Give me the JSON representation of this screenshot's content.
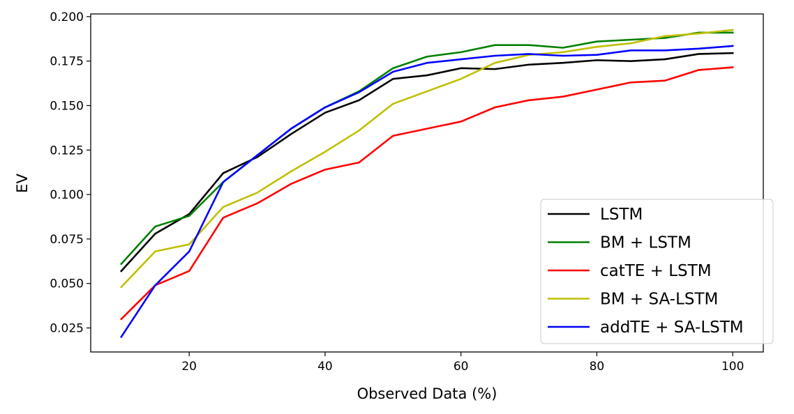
{
  "chart_data": {
    "type": "line",
    "title": "",
    "xlabel": "Observed Data (%)",
    "ylabel": "EV",
    "xlim": [
      5.5,
      104.5
    ],
    "ylim": [
      0.0115,
      0.2015
    ],
    "xticks": [
      20,
      40,
      60,
      80,
      100
    ],
    "yticks": [
      0.025,
      0.05,
      0.075,
      0.1,
      0.125,
      0.15,
      0.175,
      0.2
    ],
    "ytick_labels": [
      "0.025",
      "0.050",
      "0.075",
      "0.100",
      "0.125",
      "0.150",
      "0.175",
      "0.200"
    ],
    "grid": false,
    "legend_position": "lower-right",
    "x": [
      10,
      15,
      20,
      25,
      30,
      35,
      40,
      45,
      50,
      55,
      60,
      65,
      70,
      75,
      80,
      85,
      90,
      95,
      100
    ],
    "series": [
      {
        "name": "LSTM",
        "color": "#000000",
        "values": [
          0.057,
          0.078,
          0.089,
          0.112,
          0.121,
          0.134,
          0.146,
          0.153,
          0.165,
          0.167,
          0.171,
          0.1705,
          0.173,
          0.174,
          0.1755,
          0.175,
          0.176,
          0.179,
          0.1795
        ]
      },
      {
        "name": "BM + LSTM",
        "color": "#008000",
        "values": [
          0.061,
          0.082,
          0.088,
          0.107,
          0.122,
          0.137,
          0.149,
          0.158,
          0.171,
          0.1775,
          0.18,
          0.184,
          0.184,
          0.1825,
          0.186,
          0.187,
          0.188,
          0.191,
          0.191
        ]
      },
      {
        "name": "catTE + LSTM",
        "color": "#ff0000",
        "values": [
          0.03,
          0.049,
          0.057,
          0.087,
          0.095,
          0.106,
          0.114,
          0.118,
          0.133,
          0.137,
          0.141,
          0.149,
          0.153,
          0.155,
          0.159,
          0.163,
          0.164,
          0.17,
          0.1715
        ]
      },
      {
        "name": "BM + SA-LSTM",
        "color": "#bfbf00",
        "values": [
          0.048,
          0.068,
          0.072,
          0.093,
          0.101,
          0.113,
          0.124,
          0.136,
          0.151,
          0.158,
          0.165,
          0.174,
          0.1785,
          0.18,
          0.183,
          0.185,
          0.189,
          0.1905,
          0.1925
        ]
      },
      {
        "name": "addTE + SA-LSTM",
        "color": "#0000ff",
        "values": [
          0.02,
          0.049,
          0.068,
          0.107,
          0.122,
          0.137,
          0.149,
          0.1575,
          0.169,
          0.174,
          0.176,
          0.178,
          0.179,
          0.178,
          0.1785,
          0.181,
          0.181,
          0.182,
          0.1835
        ]
      }
    ]
  }
}
